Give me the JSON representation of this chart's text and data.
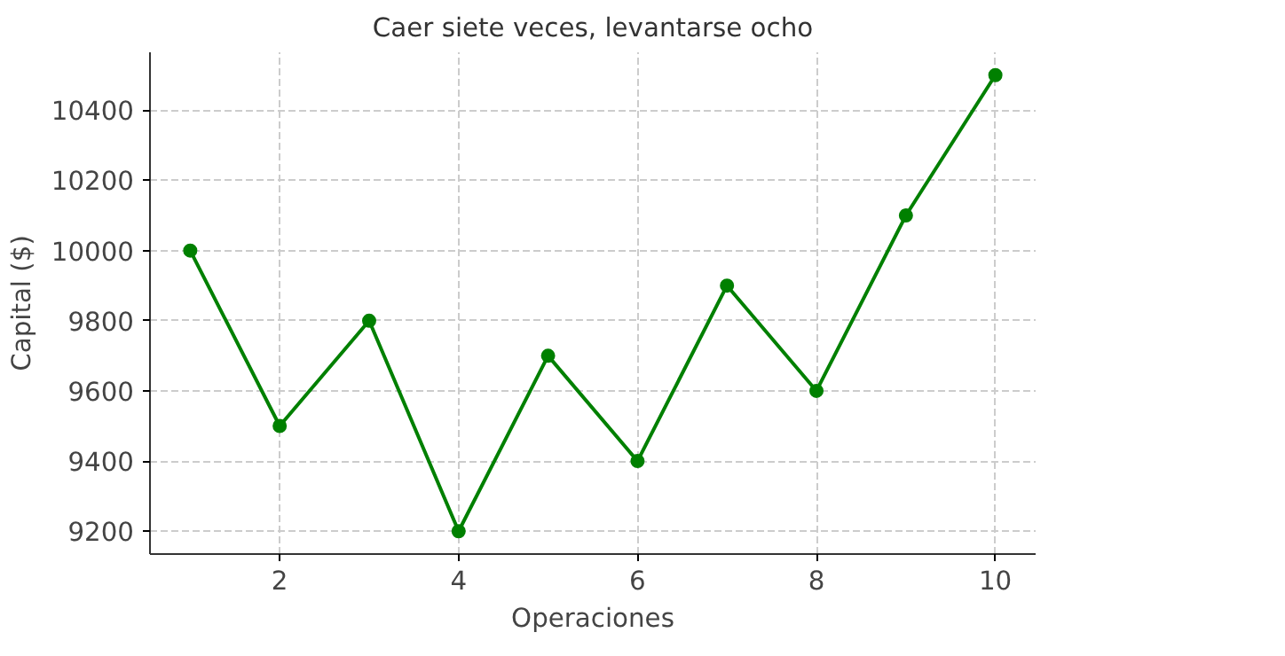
{
  "chart_data": {
    "type": "line",
    "title": "Caer siete veces, levantarse ocho",
    "xlabel": "Operaciones",
    "ylabel": "Capital ($)",
    "x": [
      1,
      2,
      3,
      4,
      5,
      6,
      7,
      8,
      9,
      10
    ],
    "series": [
      {
        "color": "#008000",
        "values": [
          10000,
          9500,
          9800,
          9200,
          9700,
          9400,
          9900,
          9600,
          10100,
          10500
        ]
      }
    ],
    "xlim": [
      0.55,
      10.45
    ],
    "ylim": [
      9135,
      10565
    ],
    "xticks": [
      2,
      4,
      6,
      8,
      10
    ],
    "yticks": [
      9200,
      9400,
      9600,
      9800,
      10000,
      10200,
      10400
    ],
    "grid": true,
    "marker": "circle",
    "line_style": "solid"
  }
}
